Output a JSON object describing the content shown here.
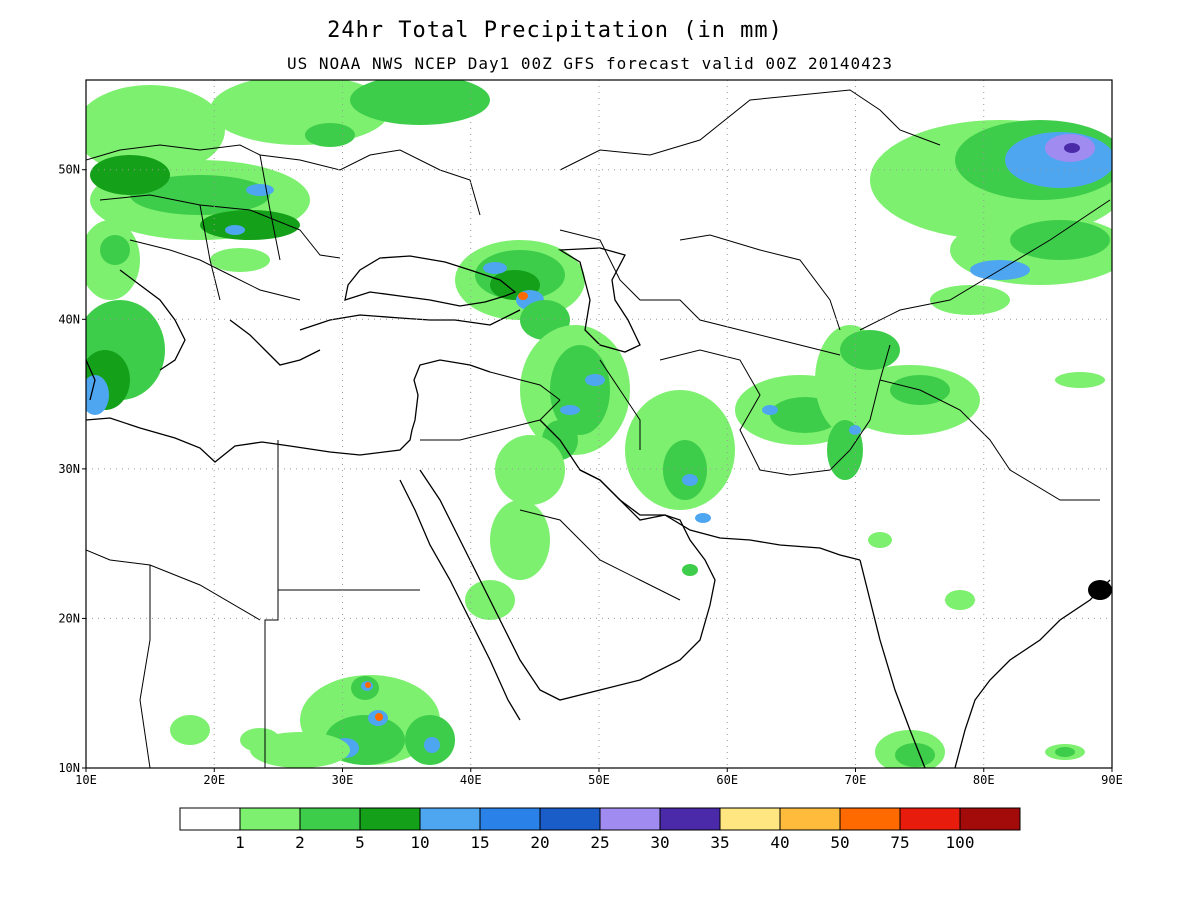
{
  "title": "24hr Total Precipitation (in mm)",
  "subtitle": "US NOAA NWS NCEP Day1 00Z GFS forecast valid 00Z 20140423",
  "map": {
    "lon_range": [
      10,
      90
    ],
    "lat_range": [
      10,
      56
    ],
    "lon_ticks": [
      {
        "v": 10,
        "label": "10E"
      },
      {
        "v": 20,
        "label": "20E"
      },
      {
        "v": 30,
        "label": "30E"
      },
      {
        "v": 40,
        "label": "40E"
      },
      {
        "v": 50,
        "label": "50E"
      },
      {
        "v": 60,
        "label": "60E"
      },
      {
        "v": 70,
        "label": "70E"
      },
      {
        "v": 80,
        "label": "80E"
      },
      {
        "v": 90,
        "label": "90E"
      }
    ],
    "lat_ticks": [
      {
        "v": 10,
        "label": "10N"
      },
      {
        "v": 20,
        "label": "20N"
      },
      {
        "v": 30,
        "label": "30N"
      },
      {
        "v": 40,
        "label": "40N"
      },
      {
        "v": 50,
        "label": "50N"
      }
    ],
    "grid": "dotted"
  },
  "legend": {
    "colors": [
      "#ffffff",
      "#7df06f",
      "#3ecd4a",
      "#15a01a",
      "#4ea6f0",
      "#2a82e8",
      "#1a5cc8",
      "#a08cf0",
      "#4a2aa8",
      "#ffe680",
      "#ffbc3c",
      "#ff6a00",
      "#e81c0c",
      "#a30a0a"
    ],
    "labels": [
      "1",
      "2",
      "5",
      "10",
      "15",
      "20",
      "25",
      "30",
      "35",
      "40",
      "50",
      "75",
      "100"
    ]
  },
  "precip_blobs": [
    {
      "region": "europe-west",
      "lon": 13,
      "lat": 50,
      "level": 1
    },
    {
      "region": "europe-central",
      "lon": 22,
      "lat": 47,
      "level": 2
    },
    {
      "region": "caucasus",
      "lon": 44,
      "lat": 42,
      "level": 3
    },
    {
      "region": "zagros",
      "lon": 48,
      "lat": 35,
      "level": 2
    },
    {
      "region": "iran-south",
      "lon": 57,
      "lat": 29,
      "level": 2
    },
    {
      "region": "afghanistan",
      "lon": 66,
      "lat": 34,
      "level": 2
    },
    {
      "region": "central-asia-ne",
      "lon": 82,
      "lat": 48,
      "level": 2
    },
    {
      "region": "sudan",
      "lon": 32,
      "lat": 13,
      "level": 3
    },
    {
      "region": "south-india",
      "lon": 75,
      "lat": 11,
      "level": 1
    }
  ]
}
